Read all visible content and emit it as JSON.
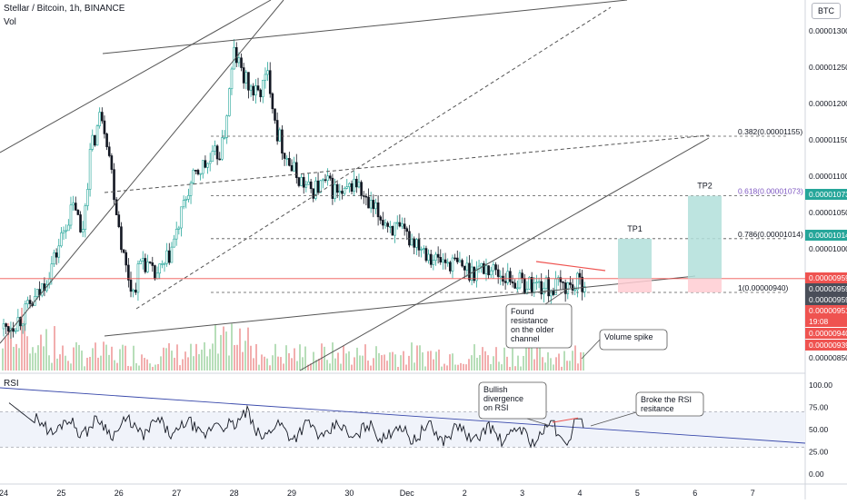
{
  "legend": {
    "title": "Stellar / Bitcoin, 1h, BINANCE",
    "vol": "Vol",
    "rsi": "RSI"
  },
  "currency_badge": "BTC",
  "colors": {
    "up": "#26a69a",
    "down": "#131722",
    "volume_up": "#a5d6a7",
    "volume_down": "#ef9a9a",
    "price_line": "#ef5350",
    "fib_purple": "#7e57c2",
    "tp_box": "#b2dfdb",
    "sl_box": "#ffcdd2"
  },
  "chart_data": [
    {
      "type": "candlestick",
      "title": "Stellar / Bitcoin, 1h, BINANCE",
      "ylim": [
        8.3e-06,
        1.33e-05
      ],
      "y_ticks": [
        "0.00001300",
        "0.00001250",
        "0.00001200",
        "0.00001150",
        "0.00001100",
        "0.00001050",
        "0.00001000",
        "0.00000850"
      ],
      "x_ticks": [
        "24",
        "25",
        "26",
        "27",
        "28",
        "29",
        "30",
        "Dec",
        "2",
        "3",
        "4",
        "5",
        "6",
        "7"
      ],
      "price_path": [
        [
          24.0,
          8.9e-06
        ],
        [
          24.3,
          9.05e-06
        ],
        [
          24.6,
          9.35e-06
        ],
        [
          24.9,
          9.9e-06
        ],
        [
          25.1,
          1.04e-05
        ],
        [
          25.25,
          1.06e-05
        ],
        [
          25.35,
          1.01e-05
        ],
        [
          25.5,
          1.13e-05
        ],
        [
          25.7,
          1.19e-05
        ],
        [
          25.8,
          1.15e-05
        ],
        [
          25.95,
          1.06e-05
        ],
        [
          26.1,
          9.8e-06
        ],
        [
          26.25,
          9.4e-06
        ],
        [
          26.4,
          9.9e-06
        ],
        [
          26.6,
          9.6e-06
        ],
        [
          26.8,
          9.75e-06
        ],
        [
          27.0,
          1.02e-05
        ],
        [
          27.2,
          1.08e-05
        ],
        [
          27.4,
          1.11e-05
        ],
        [
          27.6,
          1.12e-05
        ],
        [
          27.8,
          1.14e-05
        ],
        [
          28.0,
          1.27e-05
        ],
        [
          28.2,
          1.23e-05
        ],
        [
          28.4,
          1.21e-05
        ],
        [
          28.6,
          1.24e-05
        ],
        [
          28.75,
          1.16e-05
        ],
        [
          29.0,
          1.11e-05
        ],
        [
          29.3,
          1.08e-05
        ],
        [
          29.6,
          1.09e-05
        ],
        [
          29.9,
          1.07e-05
        ],
        [
          30.1,
          1.095e-05
        ],
        [
          30.3,
          1.06e-05
        ],
        [
          30.6,
          1.04e-05
        ],
        [
          30.9,
          1.02e-05
        ],
        [
          31.2,
          1.01e-05
        ],
        [
          31.5,
          9.85e-06
        ],
        [
          31.8,
          9.8e-06
        ],
        [
          32.1,
          9.7e-06
        ],
        [
          32.4,
          9.75e-06
        ],
        [
          32.7,
          9.62e-06
        ],
        [
          33.0,
          9.52e-06
        ],
        [
          33.3,
          9.5e-06
        ],
        [
          33.5,
          9.45e-06
        ],
        [
          33.7,
          9.5e-06
        ],
        [
          33.9,
          9.48e-06
        ],
        [
          34.1,
          9.59e-06
        ]
      ],
      "volume_label": "Vol",
      "current_price": "0.00000959",
      "right_scale_labels": [
        {
          "text": "0.00001073",
          "style": "tp"
        },
        {
          "text": "0.00001014",
          "style": "tp"
        },
        {
          "text": "0.00000959",
          "style": "red"
        },
        {
          "text": "0.00000959",
          "style": "dark"
        },
        {
          "text": "0.00000959",
          "style": "dark"
        },
        {
          "text": "0.00000951",
          "style": "red"
        },
        {
          "text": "19:08",
          "style": "red"
        },
        {
          "text": "0.00000940",
          "style": "red"
        },
        {
          "text": "0.00000939",
          "style": "red"
        }
      ],
      "fib_levels": [
        {
          "label": "0.382(0.00001155)",
          "value": 1.155e-05,
          "purple": false
        },
        {
          "label": "0.618(0.00001073)",
          "value": 1.073e-05,
          "purple": true
        },
        {
          "label": "0.786(0.00001014)",
          "value": 1.014e-05,
          "purple": false
        },
        {
          "label": "1(0.00000940)",
          "value": 9.4e-06,
          "purple": false
        }
      ],
      "targets": [
        {
          "label": "TP1",
          "target": 1.014e-05,
          "entry": 9.59e-06,
          "stop": 9.4e-06
        },
        {
          "label": "TP2",
          "target": 1.073e-05,
          "entry": 9.59e-06,
          "stop": 9.4e-06
        }
      ],
      "annotations": [
        "Found resistance on the older channel",
        "Volume spike"
      ]
    },
    {
      "type": "line",
      "title": "RSI",
      "ylim": [
        0,
        100
      ],
      "y_ticks": [
        "100.00",
        "75.00",
        "50.00",
        "25.00",
        "0.00"
      ],
      "band": [
        30,
        70
      ],
      "annotations": [
        "Bullish divergence on RSI",
        "Broke the RSI resitance"
      ]
    }
  ]
}
